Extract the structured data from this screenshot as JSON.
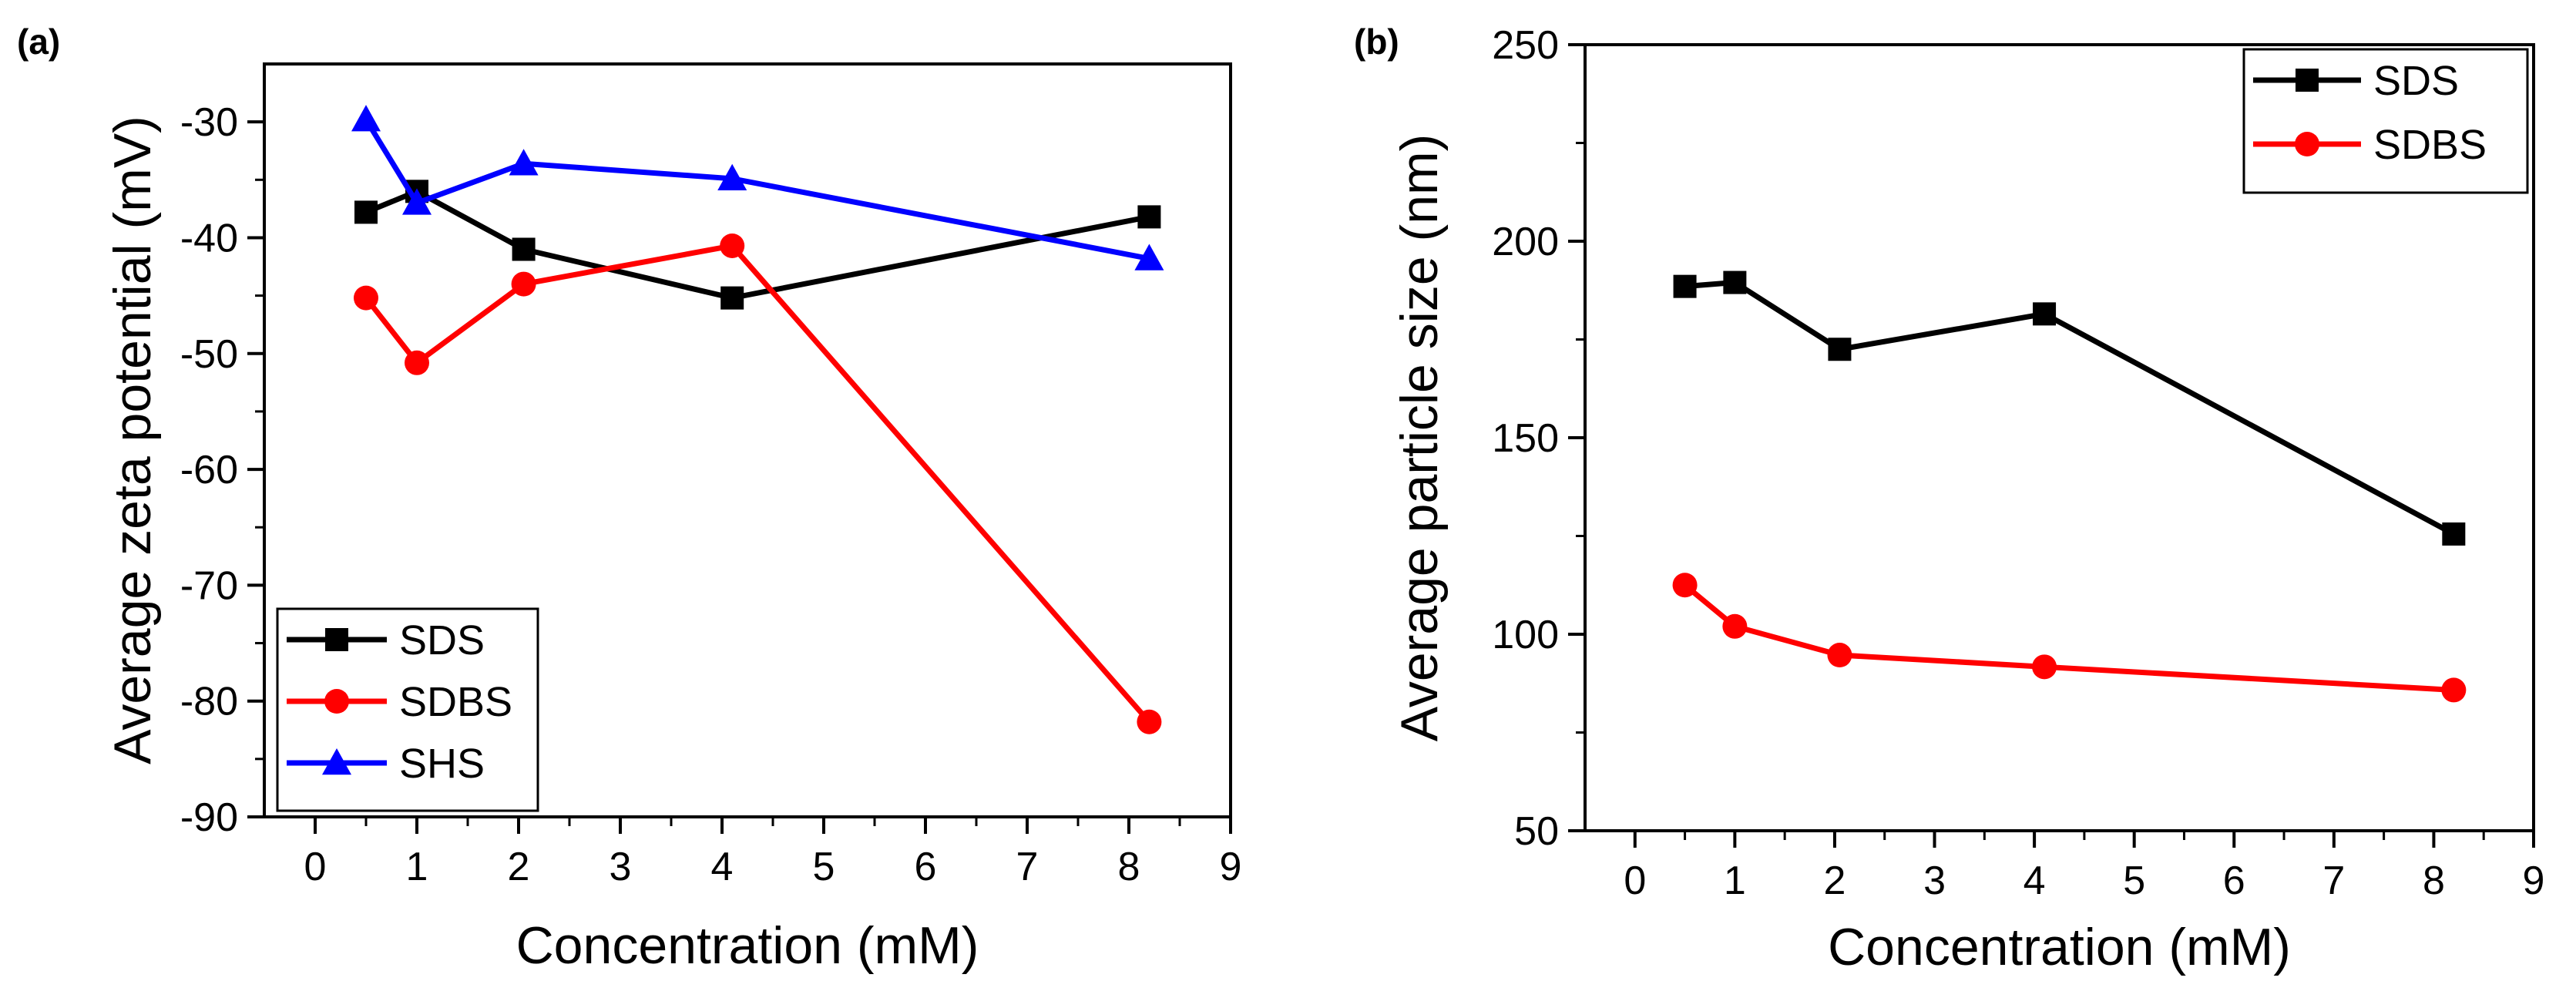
{
  "chart_data": [
    {
      "type": "line",
      "panel_label": "(a)",
      "title": "",
      "xlabel": "Concentration (mM)",
      "ylabel": "Average zeta potential (mV)",
      "xlim": [
        -0.5,
        9
      ],
      "ylim": [
        -90,
        -25
      ],
      "xticks": [
        0,
        1,
        2,
        3,
        4,
        5,
        6,
        7,
        8,
        9
      ],
      "yticks": [
        -90,
        -80,
        -70,
        -60,
        -50,
        -40,
        -30
      ],
      "grid": false,
      "legend_position": "bottom-left",
      "x": [
        0.5,
        1.0,
        2.05,
        4.1,
        8.2
      ],
      "series": [
        {
          "name": "SDS",
          "color": "#000000",
          "marker": "square",
          "values": [
            -37.8,
            -36.0,
            -41.0,
            -45.2,
            -38.2
          ]
        },
        {
          "name": "SDBS",
          "color": "#ff0000",
          "marker": "circle",
          "values": [
            -45.2,
            -50.8,
            -44.0,
            -40.7,
            -81.8
          ]
        },
        {
          "name": "SHS",
          "color": "#0000ff",
          "marker": "triangle",
          "values": [
            -29.8,
            -37.0,
            -33.6,
            -34.9,
            -41.8
          ]
        }
      ]
    },
    {
      "type": "line",
      "panel_label": "(b)",
      "title": "",
      "xlabel": "Concentration (mM)",
      "ylabel": "Average particle size (nm)",
      "xlim": [
        -0.5,
        9
      ],
      "ylim": [
        50,
        250
      ],
      "xticks": [
        0,
        1,
        2,
        3,
        4,
        5,
        6,
        7,
        8,
        9
      ],
      "yticks": [
        50,
        100,
        150,
        200,
        250
      ],
      "grid": false,
      "legend_position": "top-right",
      "x": [
        0.5,
        1.0,
        2.05,
        4.1,
        8.2
      ],
      "series": [
        {
          "name": "SDS",
          "color": "#000000",
          "marker": "square",
          "values": [
            188.5,
            189.5,
            172.5,
            181.5,
            125.5
          ]
        },
        {
          "name": "SDBS",
          "color": "#ff0000",
          "marker": "circle",
          "values": [
            112.5,
            102.0,
            94.7,
            91.7,
            85.8
          ]
        }
      ]
    }
  ]
}
